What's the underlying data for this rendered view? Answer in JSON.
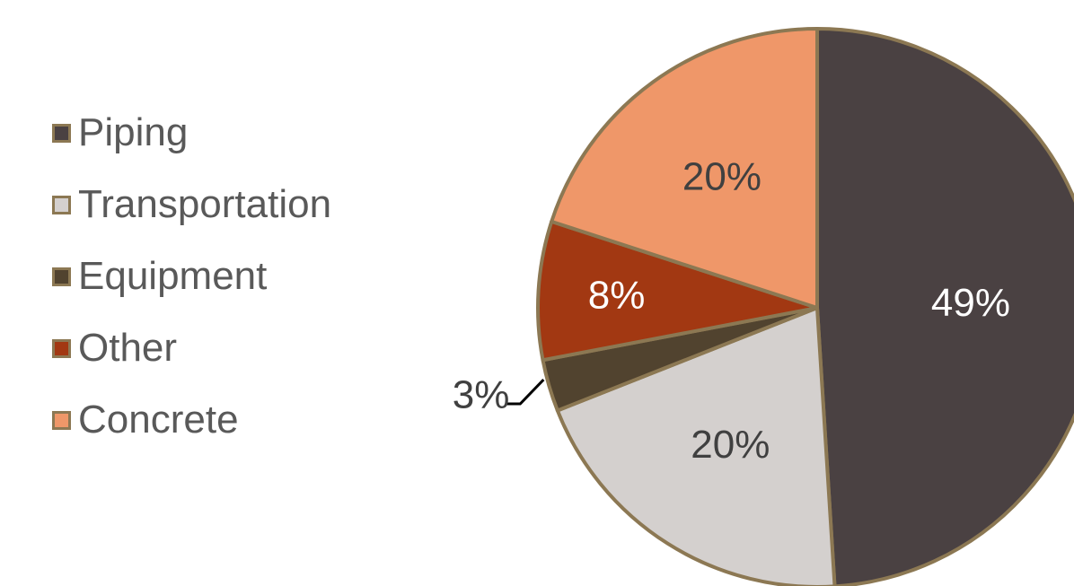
{
  "chart_data": {
    "type": "pie",
    "title": "",
    "legend_position": "left",
    "start_angle_deg": 0,
    "direction": "clockwise",
    "slices": [
      {
        "name": "Piping",
        "value": 49,
        "label": "49%",
        "color": "#4a4142",
        "label_color": "#ffffff"
      },
      {
        "name": "Transportation",
        "value": 20,
        "label": "20%",
        "color": "#d4d0ce",
        "label_color": "#404040"
      },
      {
        "name": "Equipment",
        "value": 3,
        "label": "3%",
        "color": "#51432f",
        "label_color": "#404040"
      },
      {
        "name": "Other",
        "value": 8,
        "label": "8%",
        "color": "#a23812",
        "label_color": "#ffffff"
      },
      {
        "name": "Concrete",
        "value": 20,
        "label": "20%",
        "color": "#ef9769",
        "label_color": "#404040"
      }
    ],
    "slice_border_color": "#8c7853"
  }
}
